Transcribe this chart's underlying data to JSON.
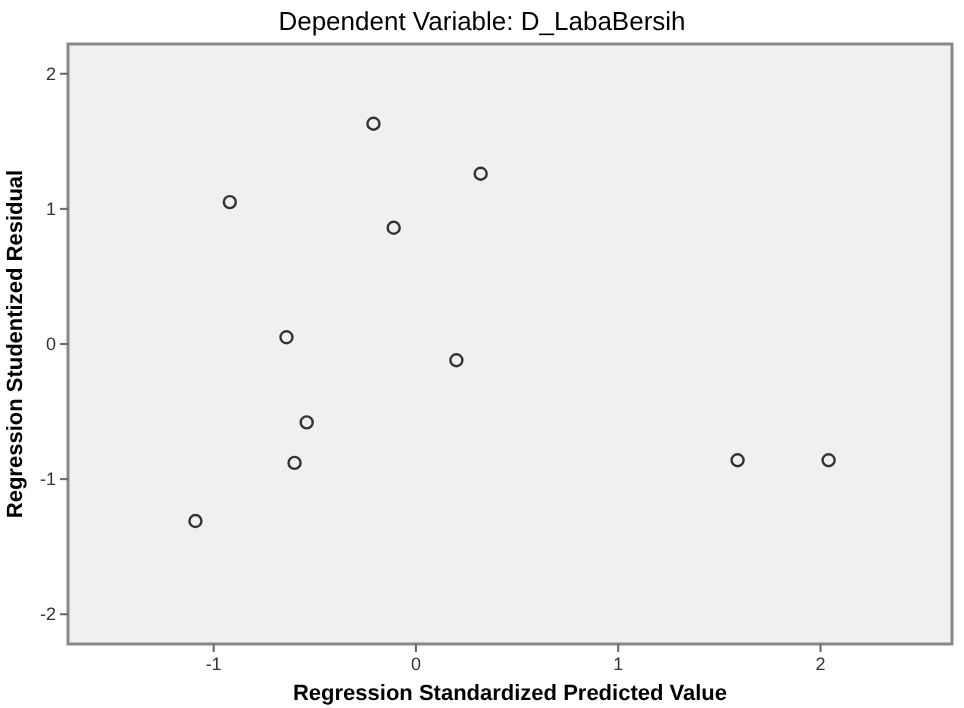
{
  "chart_data": {
    "type": "scatter",
    "title": "Dependent Variable: D_LabaBersih",
    "xlabel": "Regression Standardized Predicted Value",
    "ylabel": "Regression Studentized Residual",
    "x": [
      -0.21,
      0.32,
      -0.92,
      -0.11,
      -0.64,
      0.2,
      -0.54,
      -0.6,
      -1.09,
      1.59,
      2.04
    ],
    "series": [
      {
        "color": "#333333",
        "values": [
          1.63,
          1.26,
          1.05,
          0.86,
          0.05,
          -0.12,
          -0.58,
          -0.88,
          -1.31,
          -0.86,
          -0.86
        ]
      }
    ],
    "xlim": [
      -1.72,
      2.65
    ],
    "xticks": [
      -1,
      0,
      1,
      2
    ],
    "ylim": [
      -2.22,
      2.22
    ],
    "yticks": [
      -2,
      -1,
      0,
      1,
      2
    ],
    "marker": "circle"
  }
}
